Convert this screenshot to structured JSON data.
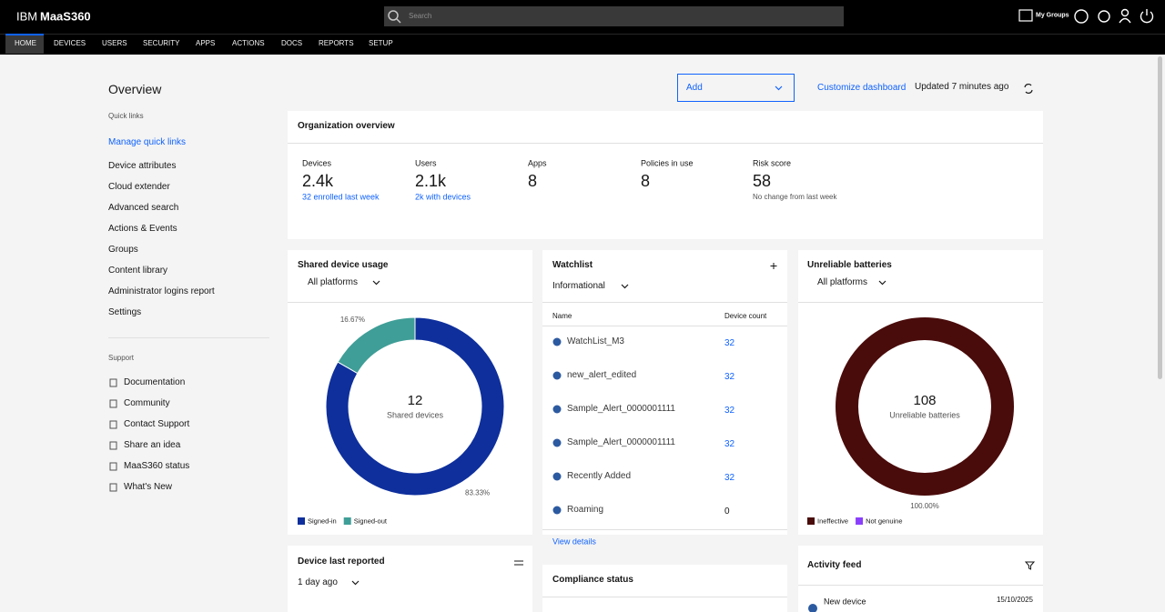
{
  "header": {
    "brand": "IBM",
    "product": "MaaS360",
    "search": "Search",
    "groups": "My Groups"
  },
  "nav": [
    "HOME",
    "DEVICES",
    "USERS",
    "SECURITY",
    "APPS",
    "ACTIONS",
    "DOCS",
    "REPORTS",
    "SETUP"
  ],
  "sidebar": {
    "title": "Overview",
    "quick_links": "Quick links",
    "manage": "Manage quick links",
    "links": [
      "Device attributes",
      "Cloud extender",
      "Advanced search",
      "Actions & Events",
      "Groups",
      "Content library",
      "Administrator logins report",
      "Settings"
    ],
    "support": "Support",
    "support_links": [
      "Documentation",
      "Community",
      "Contact Support",
      "Share an idea",
      "MaaS360 status",
      "What's New"
    ]
  },
  "toolbar": {
    "add": "Add",
    "customize": "Customize dashboard",
    "updated": "Updated 7 minutes ago"
  },
  "organization": {
    "title": "Organization overview",
    "stats": [
      {
        "label": "Devices",
        "value": "2.4k",
        "note": "32 enrolled last week"
      },
      {
        "label": "Users",
        "value": "2.1k",
        "note": "2k with devices"
      },
      {
        "label": "Apps",
        "value": 8
      },
      {
        "label": "Policies in use",
        "value": 8
      },
      {
        "label": "Risk score",
        "value": 58,
        "note": "No change from last week"
      }
    ]
  },
  "shared_usage": {
    "title": "Shared device usage",
    "filter": "All platforms",
    "total": 12,
    "total_label": "Shared devices",
    "chart": {
      "type": "pie",
      "donut": true,
      "categories": [
        "Signed-in",
        "Signed-out"
      ],
      "values": [
        83.33,
        16.67
      ],
      "value_labels": [
        "83.33%",
        "16.67%"
      ],
      "colors": [
        "#0e2f9c",
        "#3f9e97"
      ]
    }
  },
  "watchlist": {
    "title": "Watchlist",
    "filter": "Informational",
    "columns": [
      "Name",
      "Device count"
    ],
    "rows": [
      {
        "name": "WatchList_M3",
        "count": 32
      },
      {
        "name": "new_alert_edited",
        "count": 32
      },
      {
        "name": "Sample_Alert_0000001111",
        "count": 32
      },
      {
        "name": "Sample_Alert_0000001111",
        "count": 32
      },
      {
        "name": "Recently Added",
        "count": 32
      },
      {
        "name": "Roaming",
        "count": 0
      }
    ],
    "link": "View details"
  },
  "batteries": {
    "title": "Unreliable batteries",
    "filter": "All platforms",
    "total": 108,
    "total_label": "Unreliable batteries",
    "chart": {
      "type": "pie",
      "donut": true,
      "categories": [
        "Ineffective",
        "Not genuine"
      ],
      "values": [
        100,
        0
      ],
      "value_labels": [
        "100.00%",
        null
      ],
      "colors": [
        "#4a0b0b",
        "#8a3ffc"
      ]
    }
  },
  "device_last_reported": {
    "title": "Device last reported",
    "filter": "1 day ago"
  },
  "compliance": {
    "title": "Compliance status"
  },
  "activity": {
    "title": "Activity feed",
    "items": [
      {
        "event": "New device",
        "date": "15/10/2025"
      }
    ]
  }
}
